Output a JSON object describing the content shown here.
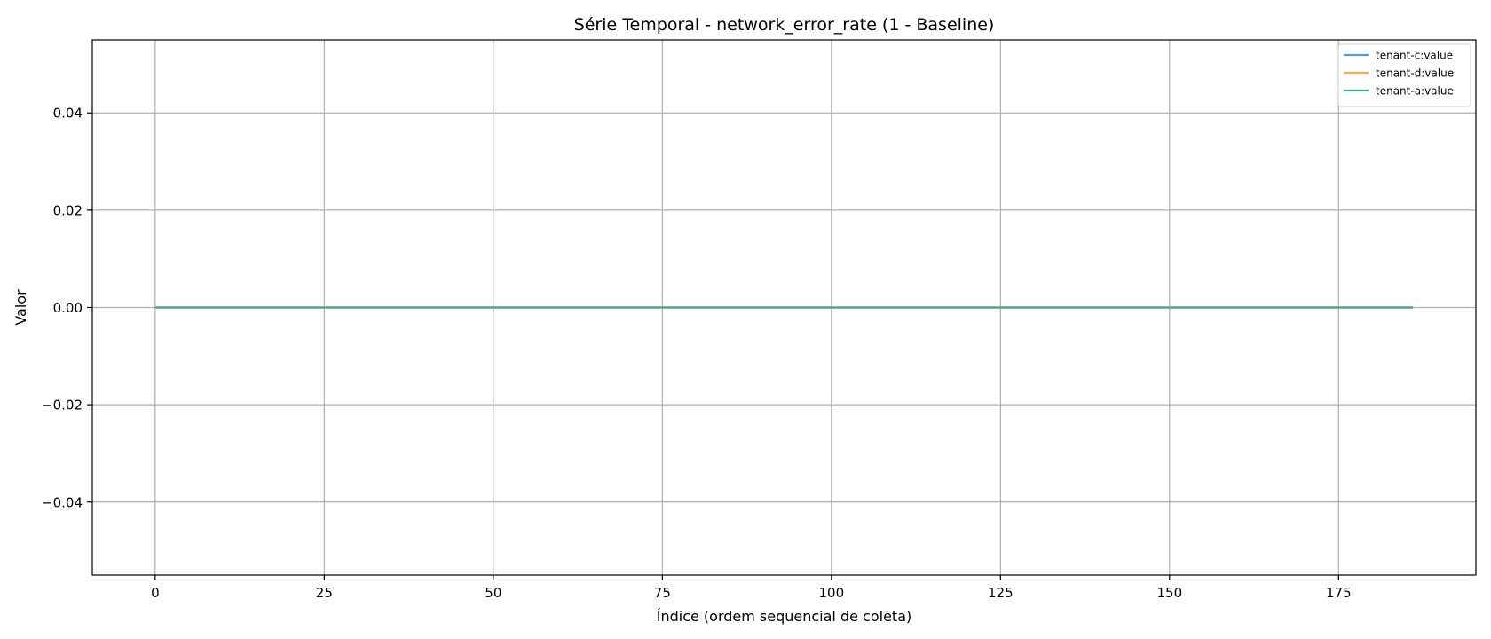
{
  "chart_data": {
    "type": "line",
    "title": "Série Temporal - network_error_rate (1 - Baseline)",
    "xlabel": "Índice (ordem sequencial de coleta)",
    "ylabel": "Valor",
    "xlim": [
      -9.3,
      195.3
    ],
    "ylim": [
      -0.055,
      0.055
    ],
    "xticks": [
      0,
      25,
      50,
      75,
      100,
      125,
      150,
      175
    ],
    "xtick_labels": [
      "0",
      "25",
      "50",
      "75",
      "100",
      "125",
      "150",
      "175"
    ],
    "yticks": [
      -0.04,
      -0.02,
      0.0,
      0.02,
      0.04
    ],
    "ytick_labels": [
      "−0.04",
      "−0.02",
      "0.00",
      "0.02",
      "0.04"
    ],
    "grid": true,
    "legend_position": "top-right",
    "series": [
      {
        "name": "tenant-c:value",
        "color": "#5b9bd5",
        "x": [
          0,
          186
        ],
        "y": [
          0,
          0
        ]
      },
      {
        "name": "tenant-d:value",
        "color": "#f5b041",
        "x": [
          0,
          186
        ],
        "y": [
          0,
          0
        ]
      },
      {
        "name": "tenant-a:value",
        "color": "#3aaa7a",
        "x": [
          0,
          186
        ],
        "y": [
          0,
          0
        ]
      }
    ]
  }
}
